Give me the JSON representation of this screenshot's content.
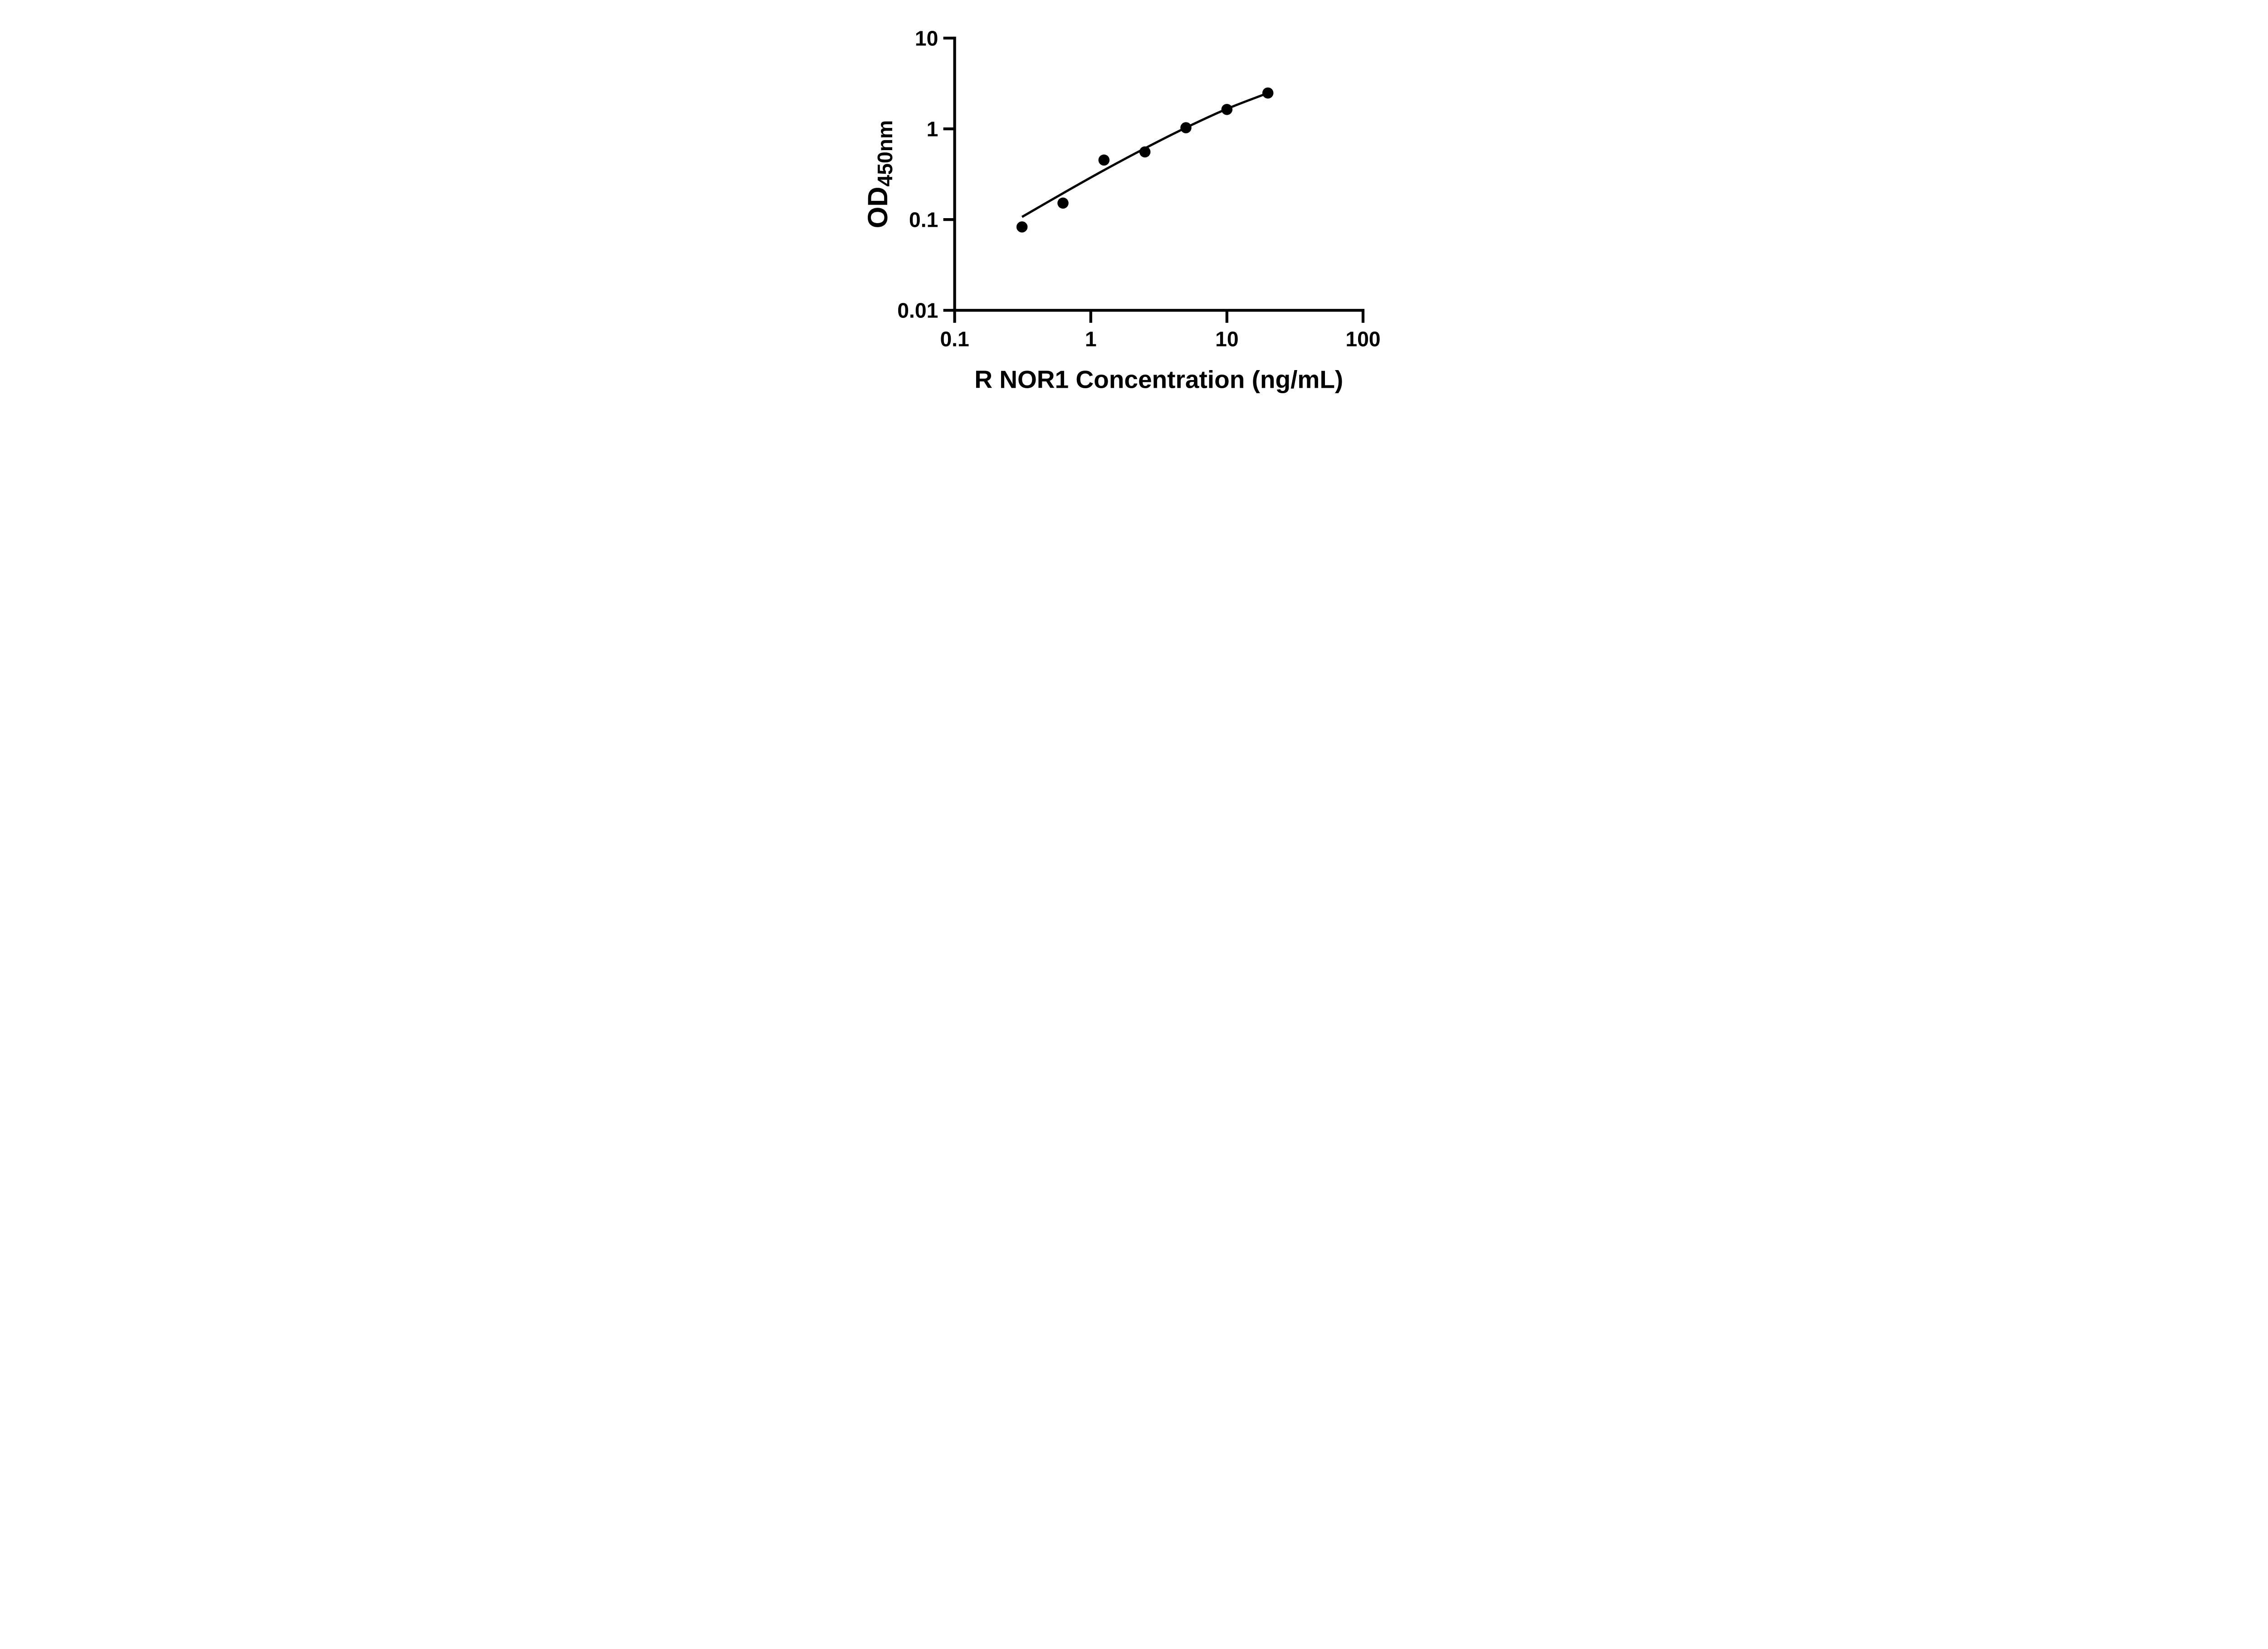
{
  "figure": {
    "background": "#ffffff",
    "ink": "#000000",
    "description": "ELISA standard curve, log-log scatter with fitted line"
  },
  "chart_data": {
    "type": "scatter",
    "title": "",
    "xlabel": "R NOR1 Concentration (ng/mL)",
    "ylabel_prefix": "OD",
    "ylabel_subscript": "450nm",
    "x_scale": "log",
    "y_scale": "log",
    "xlim": [
      0.1,
      100
    ],
    "ylim": [
      0.01,
      10
    ],
    "grid": "off",
    "legend": "none",
    "x_ticks": [
      {
        "v": 0.1,
        "label": "0.1"
      },
      {
        "v": 1,
        "label": "1"
      },
      {
        "v": 10,
        "label": "10"
      },
      {
        "v": 100,
        "label": "100"
      }
    ],
    "y_ticks": [
      {
        "v": 10,
        "label": "10"
      },
      {
        "v": 1,
        "label": "1"
      },
      {
        "v": 0.1,
        "label": "0.1"
      },
      {
        "v": 0.01,
        "label": "0.01"
      }
    ],
    "series": [
      {
        "name": "R NOR1 standard",
        "marker": "filled-circle",
        "color": "#000000",
        "points": [
          {
            "x": 0.3125,
            "y": 0.083
          },
          {
            "x": 0.625,
            "y": 0.152
          },
          {
            "x": 1.25,
            "y": 0.453
          },
          {
            "x": 2.5,
            "y": 0.557
          },
          {
            "x": 5,
            "y": 1.029
          },
          {
            "x": 10,
            "y": 1.636
          },
          {
            "x": 20,
            "y": 2.483
          }
        ]
      }
    ],
    "fit_curve": {
      "color": "#000000",
      "points": [
        [
          0.3125,
          0.107
        ],
        [
          0.625,
          0.195
        ],
        [
          1.25,
          0.35
        ],
        [
          2.5,
          0.61
        ],
        [
          5,
          1.03
        ],
        [
          10,
          1.66
        ],
        [
          20,
          2.48
        ]
      ]
    }
  }
}
